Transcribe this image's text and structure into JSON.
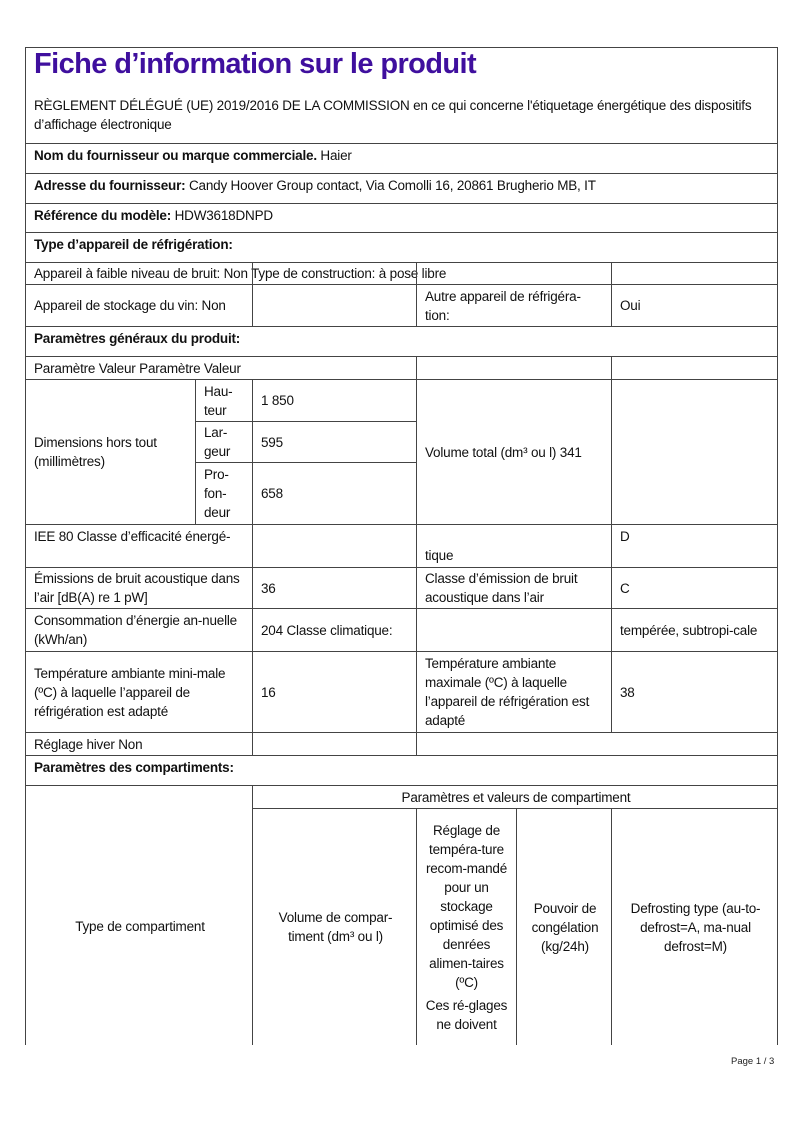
{
  "title": "Fiche d’information sur le produit",
  "regulation": "RÈGLEMENT DÉLÉGUÉ (UE) 2019/2016 DE LA COMMISSION en ce qui concerne l'étiquetage énergétique des dispositifs d’affichage électronique",
  "supplier": {
    "label": "Nom du fournisseur ou marque commerciale.",
    "value": " Haier"
  },
  "address": {
    "label": "Adresse du fournisseur:",
    "value": " Candy Hoover Group contact, Via Comolli 16, 20861 Brugherio MB, IT"
  },
  "model": {
    "label": "Référence du modèle:",
    "value": " HDW3618DNPD"
  },
  "type_heading": "Type d’appareil de réfrigération:",
  "low_noise": "Appareil à faible niveau de bruit: Non Type de construction: à pose libre",
  "wine": "Appareil de stockage du vin: Non",
  "other_label": "Autre appareil de réfrigéra-tion:",
  "other_value": "Oui",
  "general_heading": "Paramètres généraux du produit:",
  "param_header": "Paramètre Valeur Paramètre Valeur",
  "dimensions": {
    "label": "Dimensions hors tout (millimètres)",
    "height_label": "Hau-teur",
    "height": "1 850",
    "width_label": "Lar-geur",
    "width": "595",
    "depth_label": "Pro-fon-deur",
    "depth": "658",
    "volume": "Volume total (dm³ ou l) 341"
  },
  "iee": {
    "label": "IEE 80 Classe d’efficacité énergé-",
    "cont": "tique",
    "value": "D"
  },
  "noise": {
    "label": "Émissions de bruit acoustique dans l’air [dB(A) re 1 pW]",
    "value": "36",
    "class_label": "Classe d’émission de bruit acoustique dans l’air",
    "class_value": "C"
  },
  "energy": {
    "label": "Consommation d’énergie an-nuelle (kWh/an)",
    "value": "204 Classe climatique:",
    "climate": "tempérée, subtropi-cale"
  },
  "temp": {
    "min_label": "Température ambiante mini-male (ºC) à laquelle l’appareil de réfrigération est adapté",
    "min": "16",
    "max_label": "Température ambiante maximale (ºC) à laquelle l’appareil de réfrigération est adapté",
    "max": "38"
  },
  "winter": "Réglage hiver Non",
  "compartments_heading": "Paramètres des compartiments:",
  "compartment_table": {
    "group_header": "Paramètres et valeurs de compartiment",
    "type": "Type de compartiment",
    "volume": "Volume de compar-timent (dm³ ou l)",
    "temp_setting": "Réglage de tempéra-ture recom-mandé pour un stockage optimisé des denrées alimen-taires (ºC)",
    "temp_note": "Ces ré-glages ne doivent",
    "freezing": "Pouvoir de congélation (kg/24h)",
    "defrost": "Defrosting type (au-to-defrost=A, ma-nual defrost=M)"
  },
  "page": "Page 1 / 3"
}
